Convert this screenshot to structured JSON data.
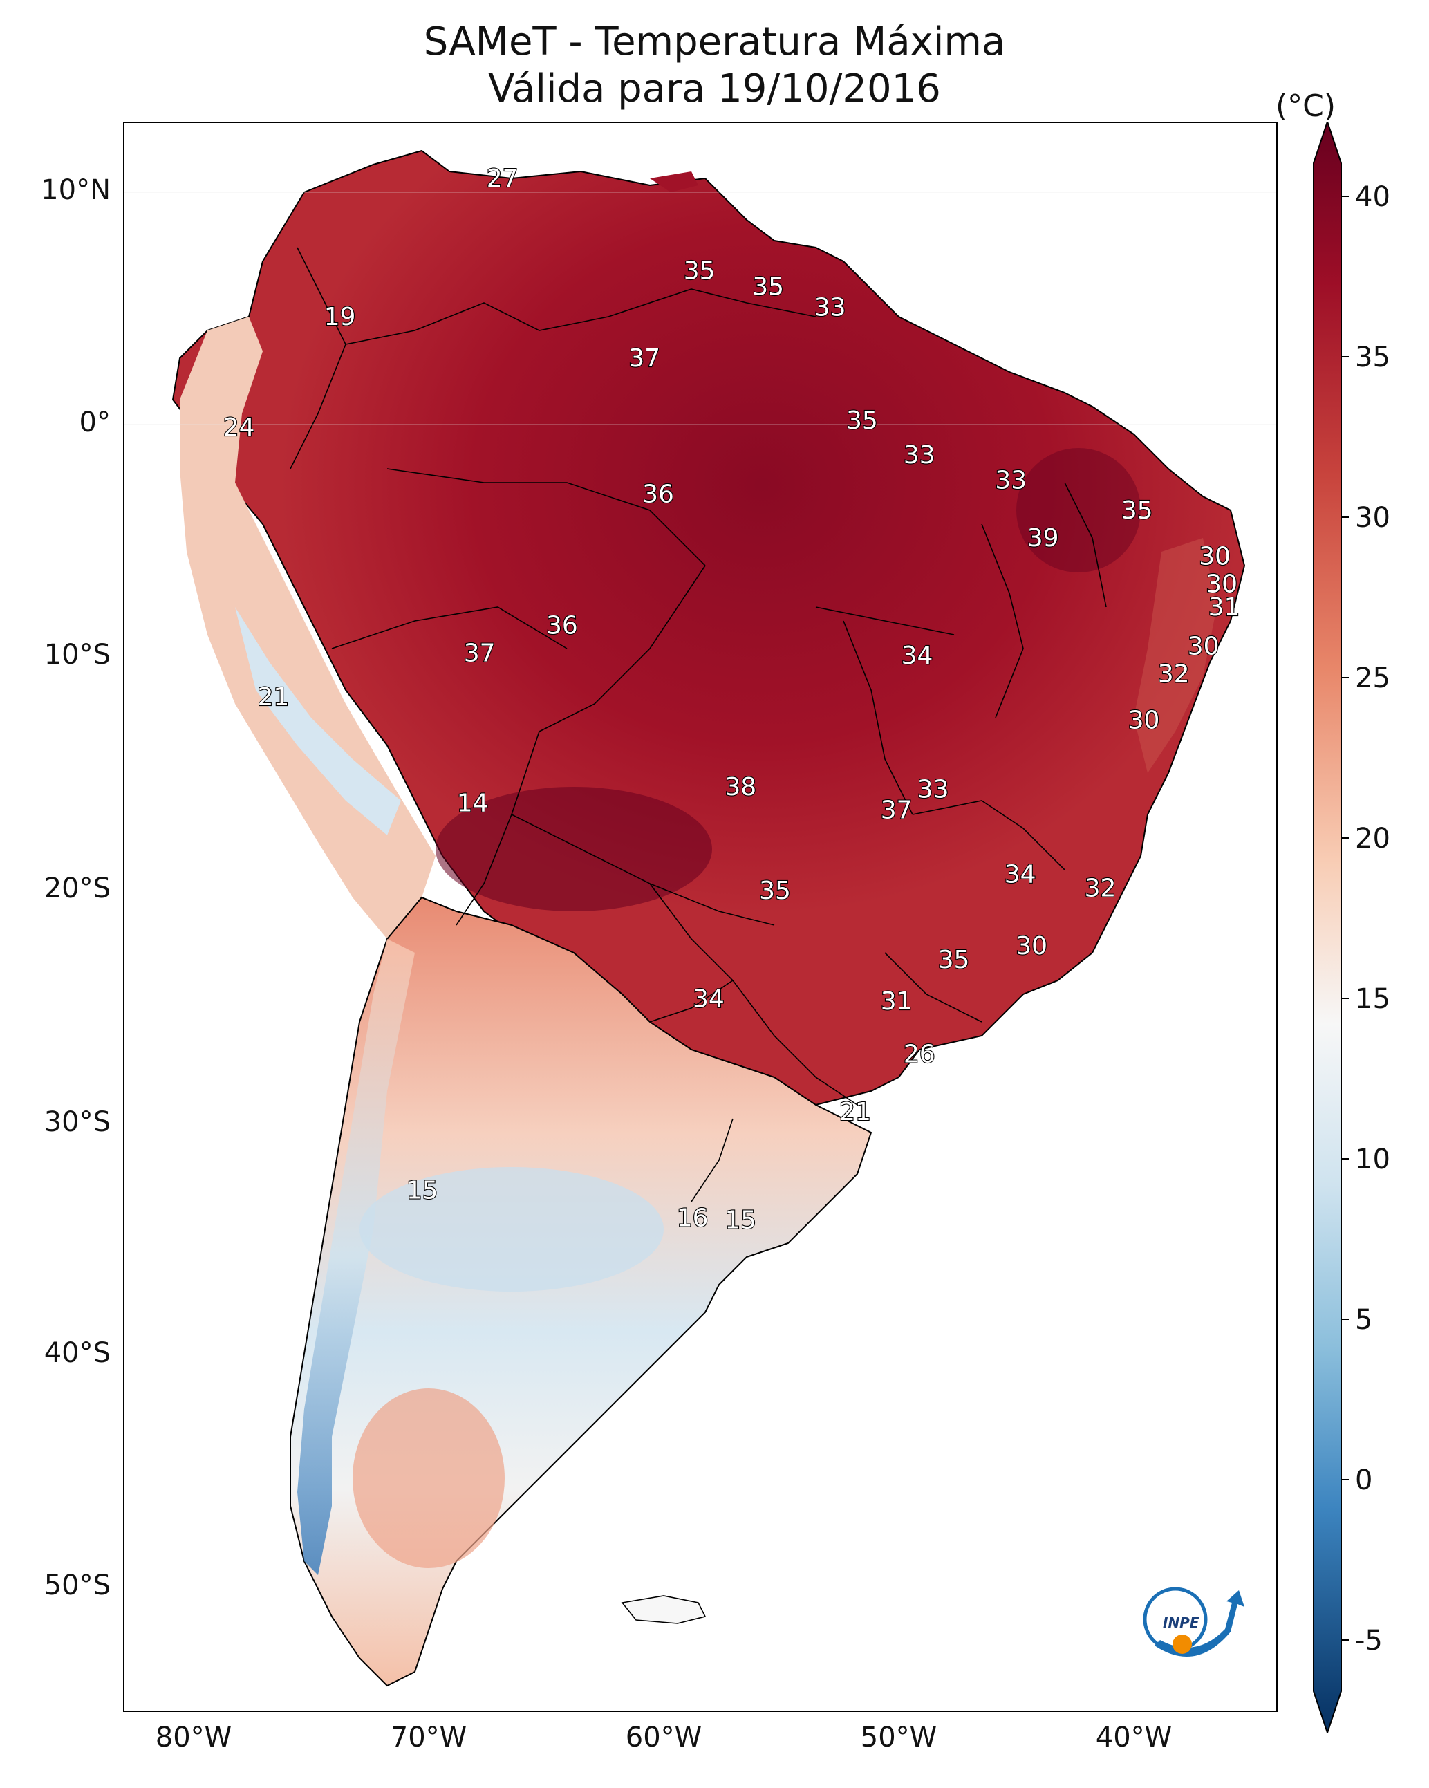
{
  "title": {
    "line1": "SAMeT - Temperatura Máxima",
    "line2": "Válida para 19/10/2016"
  },
  "axes": {
    "lat_ticks": [
      "10°N",
      "0°",
      "10°S",
      "20°S",
      "30°S",
      "40°S",
      "50°S"
    ],
    "lon_ticks": [
      "80°W",
      "70°W",
      "60°W",
      "50°W",
      "40°W"
    ]
  },
  "colorbar": {
    "unit": "(°C)",
    "ticks": [
      "40",
      "35",
      "30",
      "25",
      "20",
      "15",
      "10",
      "5",
      "0",
      "-5"
    ],
    "min": -5,
    "max": 40,
    "colors": {
      "hot": "#67001f",
      "warm": "#b2182b",
      "mild": "#f4a582",
      "neutral": "#f7f7f7",
      "cool": "#92c5de",
      "cold": "#2166ac",
      "coldest": "#053061"
    }
  },
  "labels": [
    {
      "value": "27",
      "lon": -66.5,
      "lat": 10.5
    },
    {
      "value": "35",
      "lon": -57.9,
      "lat": 6.5
    },
    {
      "value": "35",
      "lon": -54.9,
      "lat": 5.8
    },
    {
      "value": "33",
      "lon": -52.2,
      "lat": 4.9
    },
    {
      "value": "19",
      "lon": -73.6,
      "lat": 4.5
    },
    {
      "value": "37",
      "lon": -60.3,
      "lat": 2.7
    },
    {
      "value": "35",
      "lon": -50.8,
      "lat": 0.0
    },
    {
      "value": "24",
      "lon": -78.0,
      "lat": -0.3
    },
    {
      "value": "33",
      "lon": -48.3,
      "lat": -1.5
    },
    {
      "value": "33",
      "lon": -44.3,
      "lat": -2.6
    },
    {
      "value": "36",
      "lon": -59.7,
      "lat": -3.2
    },
    {
      "value": "35",
      "lon": -38.8,
      "lat": -3.9
    },
    {
      "value": "39",
      "lon": -42.9,
      "lat": -5.1
    },
    {
      "value": "30",
      "lon": -35.4,
      "lat": -5.9
    },
    {
      "value": "30",
      "lon": -35.1,
      "lat": -7.1
    },
    {
      "value": "31",
      "lon": -35.0,
      "lat": -8.1
    },
    {
      "value": "36",
      "lon": -63.9,
      "lat": -8.9
    },
    {
      "value": "30",
      "lon": -35.9,
      "lat": -9.8
    },
    {
      "value": "37",
      "lon": -67.5,
      "lat": -10.1
    },
    {
      "value": "34",
      "lon": -48.4,
      "lat": -10.2
    },
    {
      "value": "32",
      "lon": -37.2,
      "lat": -11.0
    },
    {
      "value": "21",
      "lon": -76.5,
      "lat": -12.0
    },
    {
      "value": "30",
      "lon": -38.5,
      "lat": -13.0
    },
    {
      "value": "33",
      "lon": -47.7,
      "lat": -16.0
    },
    {
      "value": "38",
      "lon": -56.1,
      "lat": -15.9
    },
    {
      "value": "14",
      "lon": -67.8,
      "lat": -16.6
    },
    {
      "value": "37",
      "lon": -49.3,
      "lat": -16.9
    },
    {
      "value": "34",
      "lon": -43.9,
      "lat": -19.7
    },
    {
      "value": "32",
      "lon": -40.4,
      "lat": -20.3
    },
    {
      "value": "35",
      "lon": -54.6,
      "lat": -20.4
    },
    {
      "value": "30",
      "lon": -43.4,
      "lat": -22.8
    },
    {
      "value": "35",
      "lon": -46.8,
      "lat": -23.4
    },
    {
      "value": "34",
      "lon": -57.5,
      "lat": -25.1
    },
    {
      "value": "31",
      "lon": -49.3,
      "lat": -25.2
    },
    {
      "value": "26",
      "lon": -48.3,
      "lat": -27.5
    },
    {
      "value": "21",
      "lon": -51.1,
      "lat": -30.0
    },
    {
      "value": "15",
      "lon": -70.0,
      "lat": -33.4
    },
    {
      "value": "16",
      "lon": -58.2,
      "lat": -34.6
    },
    {
      "value": "15",
      "lon": -56.1,
      "lat": -34.7
    }
  ],
  "logo": {
    "text": "INPE"
  }
}
